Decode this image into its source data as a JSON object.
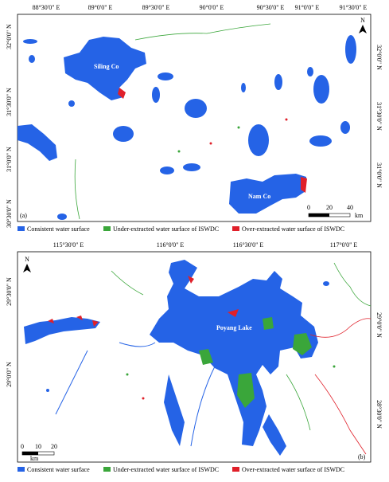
{
  "panels": [
    {
      "label": "(a)",
      "top_labels": [
        "88°30'0\" E",
        "89°0'0\" E",
        "89°30'0\" E",
        "90°0'0\" E",
        "90°30'0\" E",
        "91°0'0\" E",
        "91°30'0\" E"
      ],
      "left_labels": [
        "32°0'0\" N",
        "31°30'0\" N",
        "31°0'0\" N",
        "30°30'0\" N"
      ],
      "right_labels": [
        "32°0'0\" N",
        "31°30'0\" N",
        "31°0'0\" N"
      ],
      "place_names": [
        "Siling Co",
        "Nam Co"
      ],
      "north": "N",
      "scale": [
        "0",
        "20",
        "40",
        "km"
      ],
      "legend": [
        "Consistent water surface",
        "Under-extracted water surface of ISWDC",
        "Over-extracted water surface of ISWDC"
      ]
    },
    {
      "label": "(b)",
      "top_labels": [
        "115°30'0\" E",
        "116°0'0\" E",
        "116°30'0\" E",
        "117°0'0\" E"
      ],
      "left_labels": [
        "29°30'0\" N",
        "29°0'0\" N"
      ],
      "right_labels": [
        "29°0'0\" N",
        "28°30'0\" N"
      ],
      "place_names": [
        "Poyang Lake"
      ],
      "north": "N",
      "scale": [
        "0",
        "10",
        "20",
        "km"
      ],
      "legend": [
        "Consistent water surface",
        "Under-extracted water surface of ISWDC",
        "Over-extracted water surface of ISWDC"
      ]
    }
  ]
}
